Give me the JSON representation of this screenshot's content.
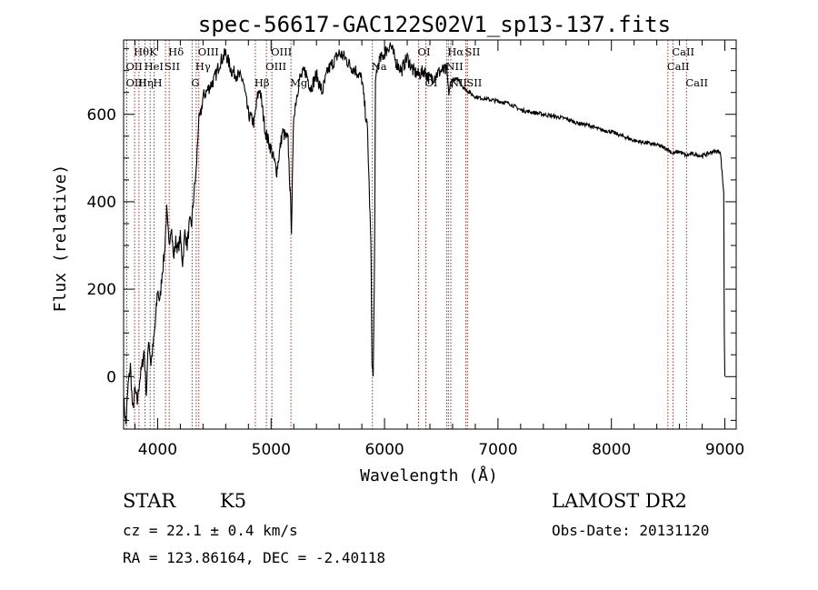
{
  "chart_data": {
    "type": "line",
    "title": "spec-56617-GAC122S02V1_sp13-137.fits",
    "xlabel": "Wavelength (Å)",
    "ylabel": "Flux (relative)",
    "xlim": [
      3700,
      9100
    ],
    "ylim": [
      -120,
      770
    ],
    "xticks": [
      4000,
      5000,
      6000,
      7000,
      8000,
      9000
    ],
    "yticks": [
      0,
      200,
      400,
      600
    ],
    "x_tick_labels": [
      "4000",
      "5000",
      "6000",
      "7000",
      "8000",
      "9000"
    ],
    "y_tick_labels": [
      "0",
      "200",
      "400",
      "600"
    ],
    "series": [
      {
        "x": [
          3700,
          3720,
          3740,
          3760,
          3780,
          3800,
          3820,
          3840,
          3860,
          3880,
          3900,
          3920,
          3940,
          3960,
          3980,
          4000,
          4020,
          4040,
          4060,
          4080,
          4100,
          4120,
          4140,
          4160,
          4180,
          4200,
          4220,
          4240,
          4260,
          4280,
          4300,
          4320,
          4340,
          4360,
          4380,
          4400,
          4450,
          4500,
          4550,
          4600,
          4650,
          4700,
          4750,
          4800,
          4850,
          4880,
          4900,
          4950,
          5000,
          5050,
          5100,
          5150,
          5180,
          5200,
          5250,
          5300,
          5350,
          5400,
          5450,
          5500,
          5550,
          5600,
          5650,
          5700,
          5750,
          5800,
          5850,
          5880,
          5890,
          5895,
          5900,
          5910,
          5920,
          5930,
          5950,
          6000,
          6050,
          6100,
          6150,
          6200,
          6250,
          6300,
          6350,
          6400,
          6450,
          6500,
          6550,
          6563,
          6600,
          6650,
          6700,
          6750,
          6800,
          6900,
          7000,
          7100,
          7200,
          7300,
          7400,
          7500,
          7600,
          7700,
          7800,
          7900,
          8000,
          8100,
          8200,
          8300,
          8400,
          8500,
          8540,
          8600,
          8660,
          8700,
          8800,
          8900,
          8960,
          8990,
          8995,
          9000
        ],
        "y": [
          -50,
          -110,
          -20,
          25,
          -80,
          -30,
          -60,
          -10,
          20,
          60,
          -40,
          90,
          30,
          70,
          120,
          200,
          170,
          240,
          280,
          380,
          300,
          350,
          270,
          310,
          290,
          320,
          260,
          330,
          300,
          350,
          350,
          420,
          470,
          580,
          600,
          640,
          660,
          680,
          720,
          740,
          700,
          690,
          680,
          600,
          580,
          640,
          660,
          560,
          520,
          470,
          560,
          540,
          340,
          600,
          680,
          700,
          660,
          690,
          650,
          700,
          720,
          740,
          730,
          710,
          700,
          680,
          560,
          300,
          40,
          10,
          0,
          200,
          660,
          700,
          720,
          740,
          760,
          720,
          700,
          730,
          700,
          690,
          700,
          680,
          690,
          700,
          700,
          650,
          680,
          680,
          660,
          650,
          640,
          635,
          630,
          625,
          610,
          605,
          600,
          595,
          590,
          580,
          575,
          565,
          560,
          550,
          540,
          535,
          530,
          520,
          510,
          515,
          505,
          510,
          505,
          515,
          515,
          420,
          100,
          0
        ]
      }
    ],
    "spectral_lines": [
      {
        "name": "Hθ",
        "wl": 3797,
        "row": 0
      },
      {
        "name": "OII",
        "wl": 3727,
        "row": 1
      },
      {
        "name": "OIII",
        "wl": 3728,
        "row": 2
      },
      {
        "name": "HeI",
        "wl": 3889,
        "row": 1
      },
      {
        "name": "Hη",
        "wl": 3835,
        "row": 2
      },
      {
        "name": "K",
        "wl": 3934,
        "row": 0
      },
      {
        "name": "SII",
        "wl": 4069,
        "row": 1
      },
      {
        "name": "H",
        "wl": 3968,
        "row": 2
      },
      {
        "name": "Hδ",
        "wl": 4102,
        "row": 0
      },
      {
        "name": "OIII",
        "wl": 4363,
        "row": 0
      },
      {
        "name": "Hγ",
        "wl": 4340,
        "row": 1
      },
      {
        "name": "G",
        "wl": 4304,
        "row": 2
      },
      {
        "name": "OIII",
        "wl": 5007,
        "row": 0
      },
      {
        "name": "OIII",
        "wl": 4959,
        "row": 1
      },
      {
        "name": "Hβ",
        "wl": 4861,
        "row": 2
      },
      {
        "name": "Mg",
        "wl": 5175,
        "row": 2
      },
      {
        "name": "Na",
        "wl": 5893,
        "row": 1
      },
      {
        "name": "OI",
        "wl": 6300,
        "row": 0
      },
      {
        "name": "OI",
        "wl": 6364,
        "row": 2
      },
      {
        "name": "Hα",
        "wl": 6563,
        "row": 0
      },
      {
        "name": "SII",
        "wl": 6716,
        "row": 0
      },
      {
        "name": "NII",
        "wl": 6548,
        "row": 1
      },
      {
        "name": "NII",
        "wl": 6584,
        "row": 2
      },
      {
        "name": "SII",
        "wl": 6731,
        "row": 2
      },
      {
        "name": "CaII",
        "wl": 8542,
        "row": 0
      },
      {
        "name": "CaII",
        "wl": 8498,
        "row": 1
      },
      {
        "name": "CaII",
        "wl": 8662,
        "row": 2
      }
    ]
  },
  "info": {
    "object_class": "STAR",
    "subclass": "K5",
    "survey": "LAMOST DR2",
    "cz": "cz = 22.1 ± 0.4 km/s",
    "obs_date": "Obs-Date: 20131120",
    "coords": "RA = 123.86164, DEC =  -2.40118"
  }
}
